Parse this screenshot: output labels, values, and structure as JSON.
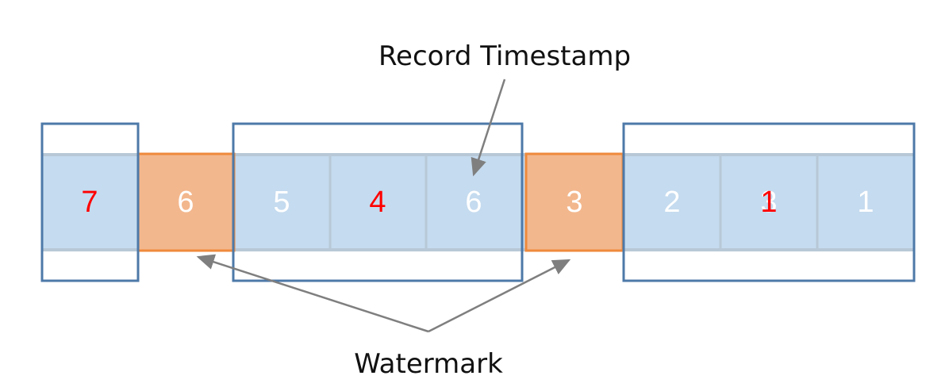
{
  "labels": {
    "record_timestamp": "Record Timestamp",
    "watermark": "Watermark"
  },
  "cells": [
    {
      "value": "7",
      "kind": "record",
      "color": "#ff0000"
    },
    {
      "value": "6",
      "kind": "watermark",
      "color": "#ffffff"
    },
    {
      "value": "5",
      "kind": "record",
      "color": "#ffffff"
    },
    {
      "value": "4",
      "kind": "record",
      "color": "#ff0000"
    },
    {
      "value": "6",
      "kind": "record",
      "color": "#ffffff"
    },
    {
      "value": "3",
      "kind": "watermark",
      "color": "#ffffff"
    },
    {
      "value": "2",
      "kind": "record",
      "color": "#ffffff"
    },
    {
      "value": "3",
      "kind": "record",
      "color": "#ffffff",
      "overlay": "1",
      "overlay_color": "#ff0000"
    },
    {
      "value": "1",
      "kind": "record",
      "color": "#ffffff"
    }
  ],
  "colors": {
    "record_fill": "#c5dbef",
    "record_divider": "#b8c8d6",
    "watermark_fill": "#f3b78d",
    "watermark_stroke": "#ef8a3c",
    "window_stroke": "#4d79a8",
    "arrow": "#7f7f7f"
  }
}
